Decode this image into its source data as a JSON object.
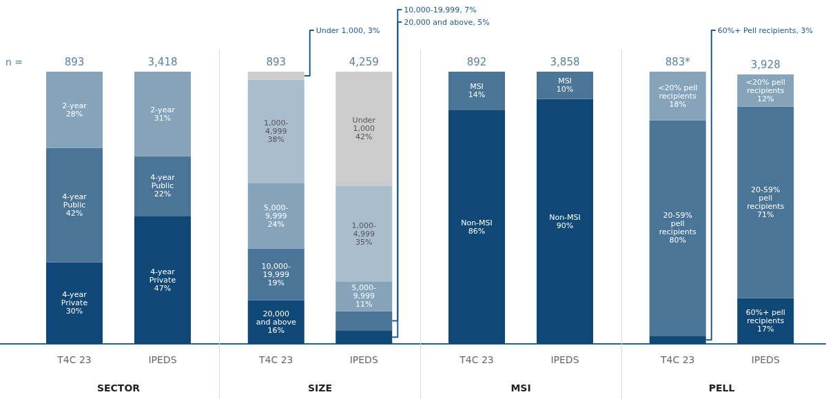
{
  "chart_data": [
    {
      "type": "bar",
      "stacked": true,
      "xlabel": "SECTOR",
      "categories": [
        "T4C 23",
        "IPEDS"
      ],
      "series": [
        {
          "color": "#0f4777",
          "values": [
            30,
            47
          ],
          "value_labels": [
            "4-year\nPrivate\n30%",
            "4-year\nPrivate\n47%"
          ]
        },
        {
          "color": "#4a7599",
          "values": [
            42,
            22
          ],
          "value_labels": [
            "4-year\nPublic\n42%",
            "4-year\nPublic\n22%"
          ]
        },
        {
          "color": "#85a4bc",
          "values": [
            28,
            31
          ],
          "value_labels": [
            "2-year\n28%",
            "2-year\n31%"
          ]
        }
      ],
      "annotations": [
        "893",
        "3,418",
        "n ="
      ]
    },
    {
      "type": "bar",
      "stacked": true,
      "xlabel": "SIZE",
      "categories": [
        "T4C 23",
        "IPEDS"
      ],
      "series": [
        {
          "color": "#0f4777",
          "values": [
            16,
            5
          ],
          "value_labels": [
            "20,000\nand above\n16%",
            null
          ]
        },
        {
          "color": "#4a7599",
          "values": [
            19,
            7
          ],
          "value_labels": [
            "10,000-\n19,999\n19%",
            null
          ]
        },
        {
          "color": "#85a4bc",
          "values": [
            24,
            11
          ],
          "value_labels": [
            "5,000-\n9,999\n24%",
            "5,000-\n9,999\n11%"
          ]
        },
        {
          "color": "#a9bdcf",
          "values": [
            38,
            35
          ],
          "value_labels": [
            "1,000-\n4,999\n38%",
            "1,000-\n4,999\n35%"
          ]
        },
        {
          "color": "#cccccc",
          "values": [
            3,
            42
          ],
          "value_labels": [
            null,
            "Under\n1,000\n42%"
          ]
        }
      ],
      "annotations": [
        "893",
        "4,259",
        "Under 1,000, 3%",
        "10,000-19,999, 7%",
        "20,000 and above, 5%"
      ]
    },
    {
      "type": "bar",
      "stacked": true,
      "xlabel": "MSI",
      "categories": [
        "T4C 23",
        "IPEDS"
      ],
      "series": [
        {
          "color": "#0f4777",
          "values": [
            86,
            90
          ],
          "value_labels": [
            "Non-MSI\n86%",
            "Non-MSI\n90%"
          ]
        },
        {
          "color": "#4a7599",
          "values": [
            14,
            10
          ],
          "value_labels": [
            "MSI\n14%",
            "MSI\n10%"
          ]
        }
      ],
      "annotations": [
        "892",
        "3,858"
      ]
    },
    {
      "type": "bar",
      "stacked": true,
      "xlabel": "PELL",
      "categories": [
        "T4C 23",
        "IPEDS"
      ],
      "series": [
        {
          "color": "#0f4777",
          "values": [
            3,
            17
          ],
          "value_labels": [
            null,
            "60%+ pell\nrecipients\n17%"
          ]
        },
        {
          "color": "#4a7599",
          "values": [
            80,
            71
          ],
          "value_labels": [
            "20-59%\npell\nrecipients\n80%",
            "20-59%\npell\nrecipients\n71%"
          ]
        },
        {
          "color": "#85a4bc",
          "values": [
            18,
            12
          ],
          "value_labels": [
            "<20% pell\nrecipients\n18%",
            "<20% pell\nrecipients\n12%"
          ]
        }
      ],
      "annotations": [
        "883*",
        "3,928",
        "60%+ Pell recipients, 3%"
      ]
    }
  ]
}
